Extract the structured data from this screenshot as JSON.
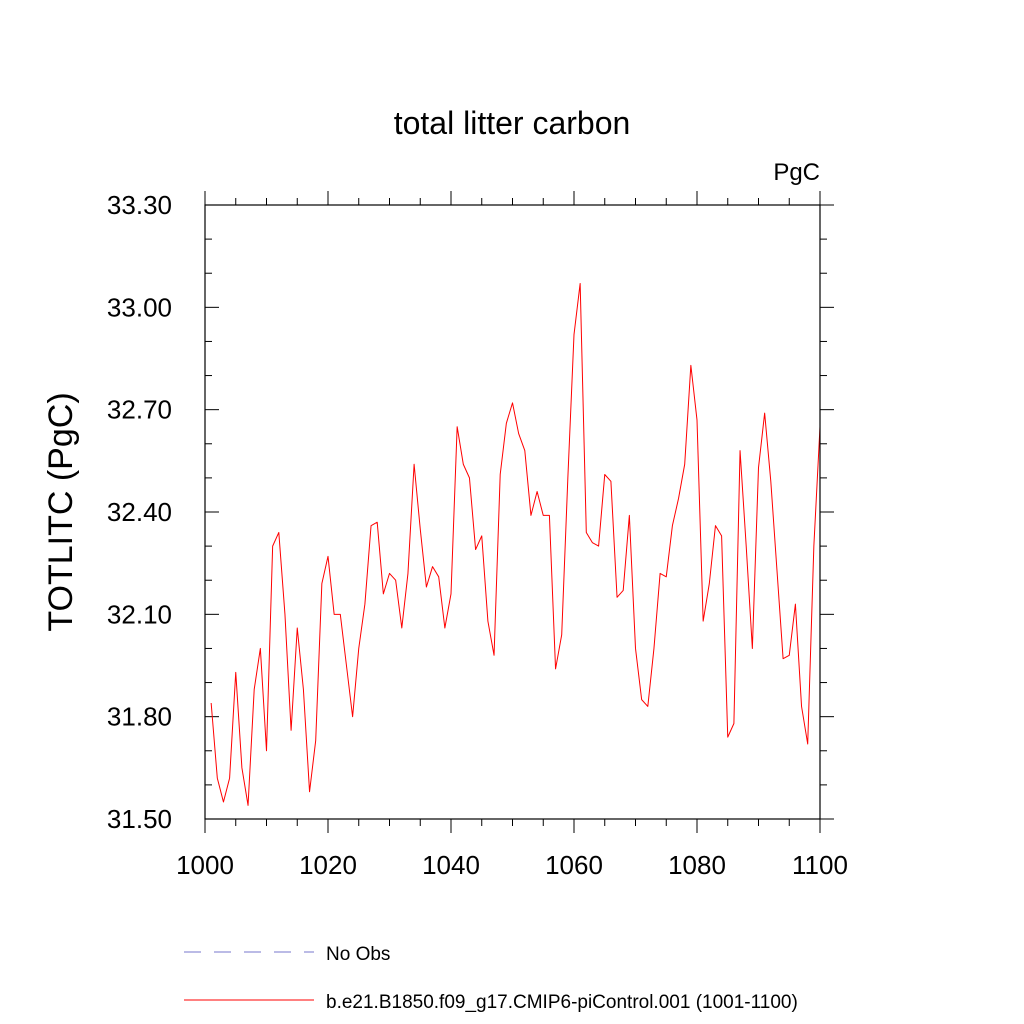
{
  "chart_data": {
    "type": "line",
    "title": "total litter carbon",
    "units": "PgC",
    "ylabel": "TOTLITC  (PgC)",
    "xlabel": "",
    "xlim": [
      1000,
      1100
    ],
    "ylim": [
      31.5,
      33.3
    ],
    "xticks": [
      1000,
      1020,
      1040,
      1060,
      1080,
      1100
    ],
    "yticks": [
      "31.50",
      "31.80",
      "32.10",
      "32.40",
      "32.70",
      "33.00",
      "33.30"
    ],
    "grid": false,
    "legend_position": "bottom",
    "series": [
      {
        "name": "No Obs",
        "style": "dashed",
        "color": "#7777cc",
        "x": [],
        "values": []
      },
      {
        "name": "b.e21.B1850.f09_g17.CMIP6-piControl.001 (1001-1100)",
        "style": "solid",
        "color": "#ff0000",
        "x": [
          1001,
          1002,
          1003,
          1004,
          1005,
          1006,
          1007,
          1008,
          1009,
          1010,
          1011,
          1012,
          1013,
          1014,
          1015,
          1016,
          1017,
          1018,
          1019,
          1020,
          1021,
          1022,
          1023,
          1024,
          1025,
          1026,
          1027,
          1028,
          1029,
          1030,
          1031,
          1032,
          1033,
          1034,
          1035,
          1036,
          1037,
          1038,
          1039,
          1040,
          1041,
          1042,
          1043,
          1044,
          1045,
          1046,
          1047,
          1048,
          1049,
          1050,
          1051,
          1052,
          1053,
          1054,
          1055,
          1056,
          1057,
          1058,
          1059,
          1060,
          1061,
          1062,
          1063,
          1064,
          1065,
          1066,
          1067,
          1068,
          1069,
          1070,
          1071,
          1072,
          1073,
          1074,
          1075,
          1076,
          1077,
          1078,
          1079,
          1080,
          1081,
          1082,
          1083,
          1084,
          1085,
          1086,
          1087,
          1088,
          1089,
          1090,
          1091,
          1092,
          1093,
          1094,
          1095,
          1096,
          1097,
          1098,
          1099,
          1100
        ],
        "values": [
          31.84,
          31.62,
          31.55,
          31.62,
          31.93,
          31.65,
          31.54,
          31.88,
          32.0,
          31.7,
          32.3,
          32.34,
          32.1,
          31.76,
          32.06,
          31.88,
          31.58,
          31.73,
          32.19,
          32.27,
          32.1,
          32.1,
          31.95,
          31.8,
          32.0,
          32.13,
          32.36,
          32.37,
          32.16,
          32.22,
          32.2,
          32.06,
          32.22,
          32.54,
          32.35,
          32.18,
          32.24,
          32.21,
          32.06,
          32.16,
          32.65,
          32.54,
          32.5,
          32.29,
          32.33,
          32.08,
          31.98,
          32.51,
          32.66,
          32.72,
          32.63,
          32.58,
          32.39,
          32.46,
          32.39,
          32.39,
          31.94,
          32.04,
          32.5,
          32.92,
          33.07,
          32.34,
          32.31,
          32.3,
          32.51,
          32.49,
          32.15,
          32.17,
          32.39,
          32.0,
          31.85,
          31.83,
          32.0,
          32.22,
          32.21,
          32.36,
          32.44,
          32.54,
          32.83,
          32.67,
          32.08,
          32.19,
          32.36,
          32.33,
          31.74,
          31.78,
          32.58,
          32.3,
          32.0,
          32.53,
          32.69,
          32.49,
          32.23,
          31.97,
          31.98,
          32.13,
          31.83,
          31.72,
          32.3,
          32.65
        ]
      }
    ]
  }
}
